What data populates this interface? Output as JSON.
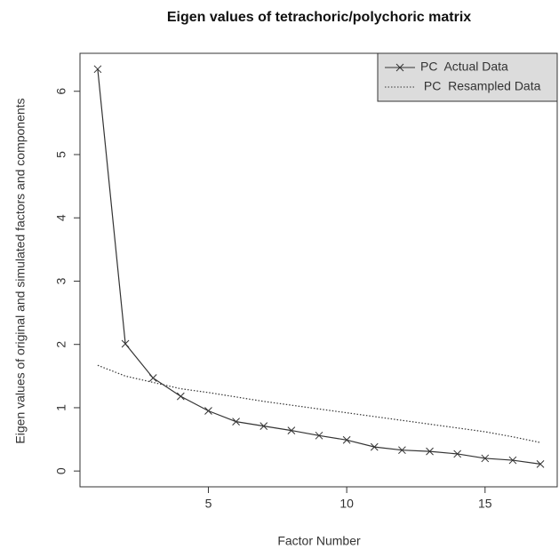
{
  "chart_data": {
    "type": "line",
    "title": "Eigen values of tetrachoric/polychoric matrix",
    "xlabel": "Factor Number",
    "ylabel": "Eigen values of original  and simulated factors and components",
    "x": [
      1,
      2,
      3,
      4,
      5,
      6,
      7,
      8,
      9,
      10,
      11,
      12,
      13,
      14,
      15,
      16,
      17
    ],
    "series": [
      {
        "name": "PC  Actual Data",
        "color": "#333333",
        "style": "solid",
        "marker": "x",
        "values": [
          6.35,
          2.01,
          1.47,
          1.18,
          0.95,
          0.78,
          0.71,
          0.64,
          0.56,
          0.49,
          0.38,
          0.33,
          0.31,
          0.27,
          0.2,
          0.17,
          0.11
        ]
      },
      {
        "name": " PC  Resampled Data",
        "color": "#333333",
        "style": "dotted",
        "marker": "none",
        "values": [
          1.67,
          1.5,
          1.4,
          1.3,
          1.24,
          1.17,
          1.1,
          1.04,
          0.98,
          0.92,
          0.86,
          0.8,
          0.74,
          0.68,
          0.62,
          0.54,
          0.45
        ]
      }
    ],
    "xlim": [
      0.36,
      17.64
    ],
    "xticks": [
      5,
      10,
      15
    ],
    "ylim": [
      -0.25,
      6.6
    ],
    "yticks": [
      0,
      1,
      2,
      3,
      4,
      5,
      6
    ],
    "legend": "top-right"
  }
}
